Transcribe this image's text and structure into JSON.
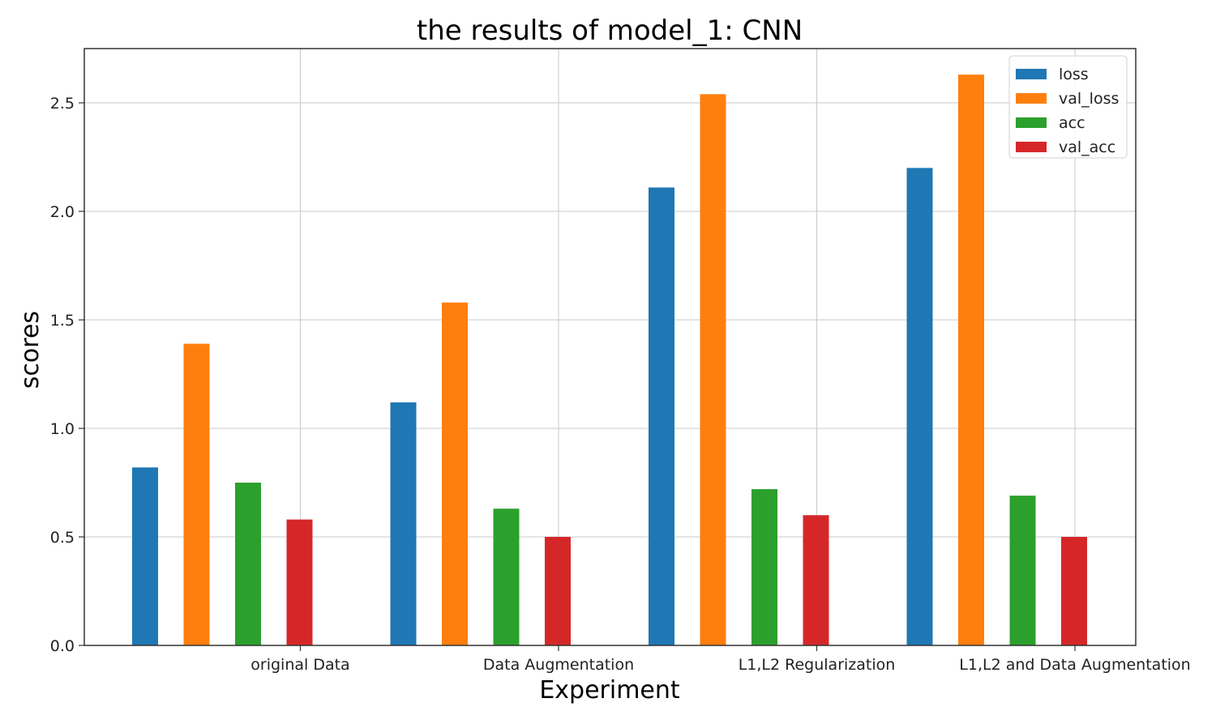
{
  "chart_data": {
    "type": "bar",
    "title": "the results of model_1: CNN",
    "xlabel": "Experiment",
    "ylabel": "scores",
    "categories": [
      "original Data",
      "Data Augmentation",
      "L1,L2 Regularization",
      "L1,L2 and Data Augmentation"
    ],
    "series": [
      {
        "name": "loss",
        "color": "#1f77b4",
        "values": [
          0.82,
          1.12,
          2.11,
          2.2
        ]
      },
      {
        "name": "val_loss",
        "color": "#ff7f0e",
        "values": [
          1.39,
          1.58,
          2.54,
          2.63
        ]
      },
      {
        "name": "acc",
        "color": "#2ca02c",
        "values": [
          0.75,
          0.63,
          0.72,
          0.69
        ]
      },
      {
        "name": "val_acc",
        "color": "#d62728",
        "values": [
          0.58,
          0.5,
          0.6,
          0.5
        ]
      }
    ],
    "ylim": [
      0,
      2.75
    ],
    "yticks": [
      "0.0",
      "0.5",
      "1.0",
      "1.5",
      "2.0",
      "2.5"
    ],
    "grid": true,
    "legend_position": "top-right"
  }
}
